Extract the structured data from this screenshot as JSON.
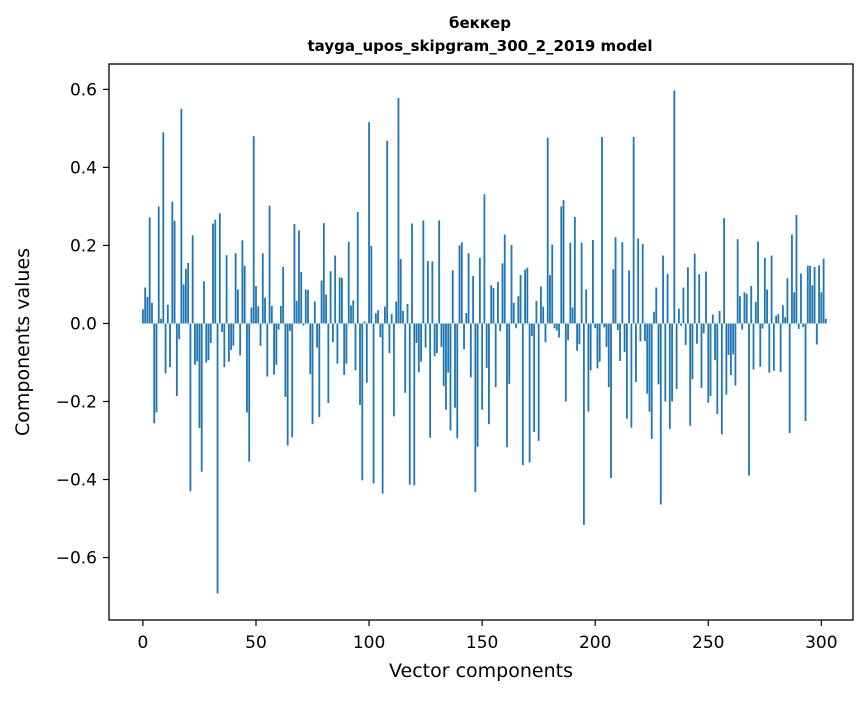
{
  "chart_data": {
    "type": "bar",
    "title": "беккер",
    "subtitle": "tayga_upos_skipgram_300_2_2019 model",
    "xlabel": "Vector components",
    "ylabel": "Components values",
    "xlim": [
      -15,
      314
    ],
    "ylim": [
      -0.76,
      0.665
    ],
    "xticks": [
      0,
      50,
      100,
      150,
      200,
      250,
      300
    ],
    "yticks": [
      -0.6,
      -0.4,
      -0.2,
      0.0,
      0.2,
      0.4,
      0.6
    ],
    "xtick_labels": [
      "0",
      "50",
      "100",
      "150",
      "200",
      "250",
      "300"
    ],
    "ytick_labels": [
      "−0.6",
      "−0.4",
      "−0.2",
      "0.0",
      "0.2",
      "0.4",
      "0.6"
    ],
    "bar_color": "#1f77b4",
    "grid": false,
    "legend": "none",
    "values": [
      0.036,
      0.092,
      0.068,
      0.272,
      0.053,
      -0.256,
      -0.228,
      0.3,
      0.012,
      0.49,
      -0.128,
      0.048,
      -0.112,
      0.312,
      0.263,
      -0.186,
      -0.04,
      0.55,
      0.1,
      0.14,
      0.155,
      -0.43,
      0.226,
      -0.106,
      -0.097,
      -0.268,
      -0.38,
      0.108,
      -0.1,
      -0.094,
      -0.05,
      0.256,
      0.266,
      -0.692,
      0.282,
      -0.022,
      -0.112,
      0.175,
      -0.098,
      -0.068,
      -0.057,
      0.18,
      0.087,
      -0.082,
      0.213,
      0.148,
      -0.228,
      -0.354,
      0.041,
      0.48,
      0.096,
      0.044,
      -0.057,
      0.18,
      0.066,
      -0.136,
      0.302,
      0.045,
      -0.131,
      -0.106,
      -0.016,
      0.045,
      0.145,
      -0.188,
      -0.313,
      -0.019,
      -0.292,
      0.255,
      0.058,
      0.238,
      0.132,
      -0.005,
      0.087,
      0.086,
      -0.13,
      -0.258,
      0.056,
      -0.062,
      -0.24,
      0.11,
      0.257,
      0.074,
      -0.204,
      0.134,
      -0.048,
      0.174,
      -0.103,
      0.118,
      0.117,
      -0.132,
      -0.103,
      0.209,
      0.046,
      0.059,
      -0.12,
      0.286,
      -0.209,
      -0.402,
      0.005,
      -0.152,
      0.516,
      0.199,
      -0.41,
      0.026,
      0.034,
      -0.035,
      -0.436,
      0.043,
      0.468,
      -0.076,
      0.024,
      -0.238,
      0.056,
      0.578,
      0.165,
      0.032,
      -0.178,
      0.05,
      -0.413,
      0.256,
      -0.415,
      -0.05,
      -0.125,
      -0.098,
      0.264,
      -0.062,
      0.16,
      -0.293,
      0.159,
      -0.084,
      -0.076,
      0.264,
      -0.06,
      -0.16,
      -0.221,
      -0.126,
      -0.274,
      0.136,
      -0.216,
      -0.294,
      0.2,
      0.208,
      -0.066,
      0.027,
      0.18,
      -0.138,
      0.122,
      -0.432,
      -0.316,
      0.168,
      -0.221,
      0.331,
      -0.114,
      -0.258,
      0.098,
      0.091,
      -0.163,
      0.107,
      -0.02,
      0.154,
      0.228,
      -0.317,
      -0.155,
      0.201,
      0.053,
      -0.012,
      0.07,
      0.124,
      -0.363,
      0.138,
      0.143,
      -0.356,
      -0.032,
      -0.278,
      0.058,
      -0.301,
      0.095,
      0.043,
      -0.048,
      0.476,
      0.124,
      0.202,
      -0.012,
      -0.018,
      -0.036,
      0.3,
      0.316,
      -0.2,
      -0.043,
      0.207,
      0.041,
      0.273,
      -0.07,
      -0.053,
      0.207,
      -0.516,
      0.087,
      -0.226,
      -0.12,
      0.214,
      -0.012,
      -0.115,
      -0.098,
      0.478,
      -0.01,
      -0.06,
      -0.163,
      -0.396,
      0.139,
      0.221,
      -0.017,
      -0.096,
      0.208,
      -0.073,
      -0.244,
      0.136,
      -0.267,
      0.478,
      -0.15,
      0.218,
      -0.046,
      0.204,
      -0.045,
      -0.18,
      -0.226,
      -0.296,
      0.03,
      0.092,
      -0.156,
      -0.464,
      0.174,
      -0.2,
      0.127,
      -0.27,
      -0.2,
      0.597,
      -0.168,
      0.038,
      -0.006,
      0.092,
      -0.055,
      0.144,
      -0.262,
      -0.143,
      0.179,
      -0.052,
      0.126,
      -0.165,
      -0.025,
      0.133,
      -0.203,
      -0.186,
      0.023,
      -0.094,
      -0.232,
      0.032,
      -0.284,
      0.27,
      -0.182,
      -0.081,
      -0.132,
      -0.079,
      -0.159,
      0.216,
      0.07,
      -0.016,
      0.08,
      0.076,
      -0.39,
      0.096,
      -0.118,
      0.055,
      0.21,
      -0.111,
      -0.013,
      0.168,
      0.087,
      -0.126,
      0.174,
      -0.121,
      0.02,
      0.024,
      -0.124,
      0.047,
      0.016,
      0.116,
      -0.281,
      0.228,
      0.08,
      0.278,
      -0.014,
      0.128,
      -0.009,
      -0.25,
      0.148,
      0.148,
      0.098,
      0.145,
      -0.054,
      0.149,
      0.08,
      0.166,
      0.012
    ]
  }
}
